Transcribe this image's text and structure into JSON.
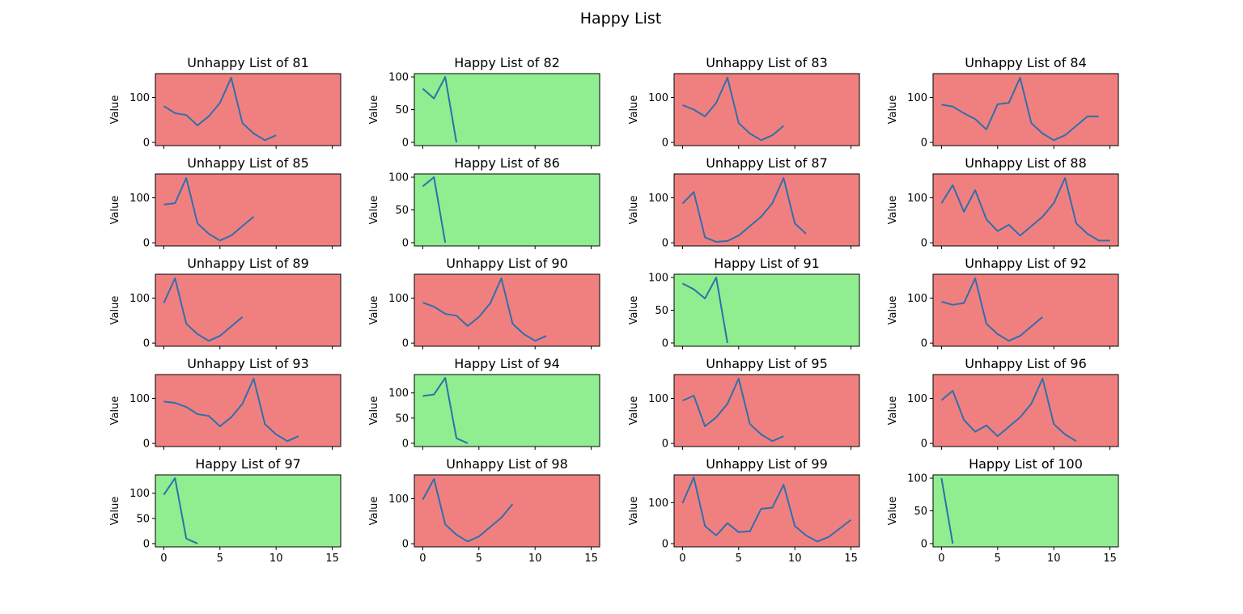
{
  "figure_title": "Happy List",
  "colors": {
    "happy": "#90ee90",
    "unhappy": "#f08080",
    "line": "#2f6fac"
  },
  "chart_data": [
    {
      "type": "line",
      "title": "Unhappy List of 81",
      "happy": false,
      "ylabel": "Value",
      "xlim": [
        -0.75,
        15.75
      ],
      "ylim": [
        -7,
        153
      ],
      "yticks": [
        0,
        100
      ],
      "xticks": [
        0,
        5,
        10,
        15
      ],
      "x": [
        0,
        1,
        2,
        3,
        4,
        5,
        6,
        7,
        8,
        9,
        10
      ],
      "y": [
        81,
        65,
        61,
        38,
        58,
        88,
        144,
        43,
        20,
        5,
        16
      ]
    },
    {
      "type": "line",
      "title": "Happy List of 82",
      "happy": true,
      "ylabel": "Value",
      "xlim": [
        -0.75,
        15.75
      ],
      "ylim": [
        -5,
        105
      ],
      "yticks": [
        0,
        50,
        100
      ],
      "xticks": [
        0,
        5,
        10,
        15
      ],
      "x": [
        0,
        1,
        2,
        3
      ],
      "y": [
        82,
        67,
        100,
        0
      ]
    },
    {
      "type": "line",
      "title": "Unhappy List of 83",
      "happy": false,
      "ylabel": "Value",
      "xlim": [
        -0.75,
        15.75
      ],
      "ylim": [
        -7,
        153
      ],
      "yticks": [
        0,
        100
      ],
      "xticks": [
        0,
        5,
        10,
        15
      ],
      "x": [
        0,
        1,
        2,
        3,
        4,
        5,
        6,
        7,
        8,
        9
      ],
      "y": [
        83,
        73,
        58,
        88,
        144,
        43,
        20,
        5,
        16,
        37
      ]
    },
    {
      "type": "line",
      "title": "Unhappy List of 84",
      "happy": false,
      "ylabel": "Value",
      "xlim": [
        -0.75,
        15.75
      ],
      "ylim": [
        -7,
        153
      ],
      "yticks": [
        0,
        100
      ],
      "xticks": [
        0,
        5,
        10,
        15
      ],
      "x": [
        0,
        1,
        2,
        3,
        4,
        5,
        6,
        7,
        8,
        9,
        10,
        11,
        12,
        13,
        14
      ],
      "y": [
        84,
        80,
        65,
        52,
        29,
        85,
        88,
        144,
        43,
        20,
        5,
        16,
        37,
        58,
        58
      ]
    },
    {
      "type": "line",
      "title": "Unhappy List of 85",
      "happy": false,
      "ylabel": "Value",
      "xlim": [
        -0.75,
        15.75
      ],
      "ylim": [
        -7,
        153
      ],
      "yticks": [
        0,
        100
      ],
      "xticks": [
        0,
        5,
        10,
        15
      ],
      "x": [
        0,
        1,
        2,
        3,
        4,
        5,
        6,
        7,
        8
      ],
      "y": [
        85,
        88,
        144,
        43,
        20,
        5,
        16,
        37,
        58
      ]
    },
    {
      "type": "line",
      "title": "Happy List of 86",
      "happy": true,
      "ylabel": "Value",
      "xlim": [
        -0.75,
        15.75
      ],
      "ylim": [
        -5,
        105
      ],
      "yticks": [
        0,
        50,
        100
      ],
      "xticks": [
        0,
        5,
        10,
        15
      ],
      "x": [
        0,
        1,
        2
      ],
      "y": [
        86,
        100,
        0
      ]
    },
    {
      "type": "line",
      "title": "Unhappy List of 87",
      "happy": false,
      "ylabel": "Value",
      "xlim": [
        -0.75,
        15.75
      ],
      "ylim": [
        -7,
        153
      ],
      "yticks": [
        0,
        100
      ],
      "xticks": [
        0,
        5,
        10,
        15
      ],
      "x": [
        0,
        1,
        2,
        3,
        4,
        5,
        6,
        7,
        8,
        9,
        10,
        11
      ],
      "y": [
        87,
        113,
        12,
        2,
        4,
        16,
        37,
        58,
        88,
        144,
        43,
        20
      ]
    },
    {
      "type": "line",
      "title": "Unhappy List of 88",
      "happy": false,
      "ylabel": "Value",
      "xlim": [
        -0.75,
        15.75
      ],
      "ylim": [
        -7,
        153
      ],
      "yticks": [
        0,
        100
      ],
      "xticks": [
        0,
        5,
        10,
        15
      ],
      "x": [
        0,
        1,
        2,
        3,
        4,
        5,
        6,
        7,
        8,
        9,
        10,
        11,
        12,
        13,
        14,
        15
      ],
      "y": [
        88,
        128,
        69,
        117,
        52,
        26,
        40,
        16,
        37,
        58,
        88,
        144,
        43,
        20,
        5,
        5
      ]
    },
    {
      "type": "line",
      "title": "Unhappy List of 89",
      "happy": false,
      "ylabel": "Value",
      "xlim": [
        -0.75,
        15.75
      ],
      "ylim": [
        -7,
        153
      ],
      "yticks": [
        0,
        100
      ],
      "xticks": [
        0,
        5,
        10,
        15
      ],
      "x": [
        0,
        1,
        2,
        3,
        4,
        5,
        6,
        7
      ],
      "y": [
        89,
        144,
        43,
        20,
        5,
        16,
        37,
        58
      ]
    },
    {
      "type": "line",
      "title": "Unhappy List of 90",
      "happy": false,
      "ylabel": "Value",
      "xlim": [
        -0.75,
        15.75
      ],
      "ylim": [
        -7,
        153
      ],
      "yticks": [
        0,
        100
      ],
      "xticks": [
        0,
        5,
        10,
        15
      ],
      "x": [
        0,
        1,
        2,
        3,
        4,
        5,
        6,
        7,
        8,
        9,
        10,
        11
      ],
      "y": [
        90,
        81,
        65,
        61,
        38,
        58,
        88,
        144,
        43,
        20,
        5,
        16
      ]
    },
    {
      "type": "line",
      "title": "Happy List of 91",
      "happy": true,
      "ylabel": "Value",
      "xlim": [
        -0.75,
        15.75
      ],
      "ylim": [
        -5,
        105
      ],
      "yticks": [
        0,
        50,
        100
      ],
      "xticks": [
        0,
        5,
        10,
        15
      ],
      "x": [
        0,
        1,
        2,
        3,
        4
      ],
      "y": [
        91,
        82,
        68,
        100,
        0
      ]
    },
    {
      "type": "line",
      "title": "Unhappy List of 92",
      "happy": false,
      "ylabel": "Value",
      "xlim": [
        -0.75,
        15.75
      ],
      "ylim": [
        -7,
        153
      ],
      "yticks": [
        0,
        100
      ],
      "xticks": [
        0,
        5,
        10,
        15
      ],
      "x": [
        0,
        1,
        2,
        3,
        4,
        5,
        6,
        7,
        8,
        9
      ],
      "y": [
        92,
        85,
        89,
        144,
        43,
        20,
        5,
        16,
        37,
        58
      ]
    },
    {
      "type": "line",
      "title": "Unhappy List of 93",
      "happy": false,
      "ylabel": "Value",
      "xlim": [
        -0.75,
        15.75
      ],
      "ylim": [
        -7,
        153
      ],
      "yticks": [
        0,
        100
      ],
      "xticks": [
        0,
        5,
        10,
        15
      ],
      "x": [
        0,
        1,
        2,
        3,
        4,
        5,
        6,
        7,
        8,
        9,
        10,
        11,
        12
      ],
      "y": [
        93,
        90,
        81,
        65,
        61,
        38,
        58,
        88,
        144,
        43,
        20,
        5,
        16
      ]
    },
    {
      "type": "line",
      "title": "Happy List of 94",
      "happy": true,
      "ylabel": "Value",
      "xlim": [
        -0.75,
        15.75
      ],
      "ylim": [
        -6.5,
        136.5
      ],
      "yticks": [
        0,
        50,
        100
      ],
      "xticks": [
        0,
        5,
        10,
        15
      ],
      "x": [
        0,
        1,
        2,
        3,
        4
      ],
      "y": [
        94,
        97,
        130,
        10,
        0
      ]
    },
    {
      "type": "line",
      "title": "Unhappy List of 95",
      "happy": false,
      "ylabel": "Value",
      "xlim": [
        -0.75,
        15.75
      ],
      "ylim": [
        -7,
        153
      ],
      "yticks": [
        0,
        100
      ],
      "xticks": [
        0,
        5,
        10,
        15
      ],
      "x": [
        0,
        1,
        2,
        3,
        4,
        5,
        6,
        7,
        8,
        9
      ],
      "y": [
        95,
        106,
        38,
        58,
        88,
        144,
        43,
        20,
        5,
        16
      ]
    },
    {
      "type": "line",
      "title": "Unhappy List of 96",
      "happy": false,
      "ylabel": "Value",
      "xlim": [
        -0.75,
        15.75
      ],
      "ylim": [
        -7,
        153
      ],
      "yticks": [
        0,
        100
      ],
      "xticks": [
        0,
        5,
        10,
        15
      ],
      "x": [
        0,
        1,
        2,
        3,
        4,
        5,
        6,
        7,
        8,
        9,
        10,
        11,
        12
      ],
      "y": [
        96,
        117,
        52,
        26,
        40,
        16,
        37,
        58,
        88,
        144,
        43,
        20,
        5
      ]
    },
    {
      "type": "line",
      "title": "Happy List of 97",
      "happy": true,
      "ylabel": "Value",
      "xlim": [
        -0.75,
        15.75
      ],
      "ylim": [
        -6.5,
        136.5
      ],
      "yticks": [
        0,
        50,
        100
      ],
      "xticks": [
        0,
        5,
        10,
        15
      ],
      "x": [
        0,
        1,
        2,
        3
      ],
      "y": [
        97,
        130,
        10,
        0
      ]
    },
    {
      "type": "line",
      "title": "Unhappy List of 98",
      "happy": false,
      "ylabel": "Value",
      "xlim": [
        -0.75,
        15.75
      ],
      "ylim": [
        -7,
        153
      ],
      "yticks": [
        0,
        100
      ],
      "xticks": [
        0,
        5,
        10,
        15
      ],
      "x": [
        0,
        1,
        2,
        3,
        4,
        5,
        6,
        7,
        8
      ],
      "y": [
        98,
        144,
        43,
        20,
        5,
        16,
        37,
        58,
        88
      ]
    },
    {
      "type": "line",
      "title": "Unhappy List of 99",
      "happy": false,
      "ylabel": "Value",
      "xlim": [
        -0.75,
        15.75
      ],
      "ylim": [
        -8,
        168
      ],
      "yticks": [
        0,
        100
      ],
      "xticks": [
        0,
        5,
        10,
        15
      ],
      "x": [
        0,
        1,
        2,
        3,
        4,
        5,
        6,
        7,
        8,
        9,
        10,
        11,
        12,
        13,
        14,
        15
      ],
      "y": [
        99,
        162,
        43,
        20,
        50,
        28,
        30,
        85,
        88,
        144,
        43,
        20,
        5,
        16,
        37,
        58
      ]
    },
    {
      "type": "line",
      "title": "Happy List of 100",
      "happy": true,
      "ylabel": "Value",
      "xlim": [
        -0.75,
        15.75
      ],
      "ylim": [
        -5,
        105
      ],
      "yticks": [
        0,
        50,
        100
      ],
      "xticks": [
        0,
        5,
        10,
        15
      ],
      "x": [
        0,
        1
      ],
      "y": [
        100,
        0
      ]
    }
  ]
}
